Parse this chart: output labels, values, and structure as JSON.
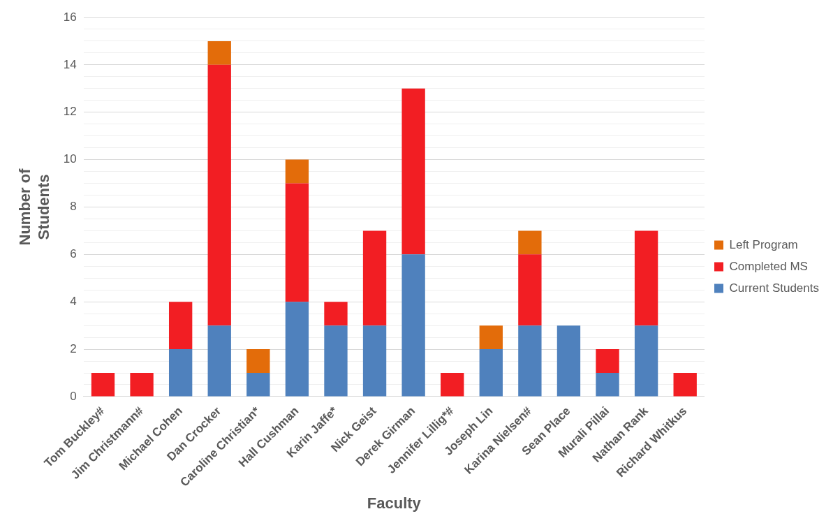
{
  "chart_data": {
    "type": "bar",
    "stacked": true,
    "xlabel": "Faculty",
    "ylabel": "Number of Students",
    "categories": [
      "Tom Buckley#",
      "Jim Christmann#",
      "Michael Cohen",
      "Dan Crocker",
      "Caroline Christian*",
      "Hall Cushman",
      "Karin Jaffe*",
      "Nick Geist",
      "Derek Girman",
      "Jennifer Lillig*#",
      "Joseph Lin",
      "Karina Nielsen#",
      "Sean Place",
      "Murali Pillai",
      "Nathan Rank",
      "Richard Whitkus"
    ],
    "series": [
      {
        "name": "Current Students",
        "color": "#4f81bd",
        "values": [
          0,
          0,
          2,
          3,
          1,
          4,
          3,
          3,
          6,
          0,
          2,
          3,
          3,
          1,
          3,
          0
        ]
      },
      {
        "name": "Completed MS",
        "color": "#f21e23",
        "values": [
          1,
          1,
          2,
          11,
          0,
          5,
          1,
          4,
          7,
          1,
          0,
          3,
          0,
          1,
          4,
          1
        ]
      },
      {
        "name": "Left Program",
        "color": "#e36c0a",
        "values": [
          0,
          0,
          0,
          1,
          1,
          1,
          0,
          0,
          0,
          0,
          1,
          1,
          0,
          0,
          0,
          0
        ]
      }
    ],
    "ylim": [
      0,
      16
    ],
    "yticks": [
      0,
      {
        "value": 0.5,
        "label": null
      },
      {
        "value": 1,
        "label": null
      },
      {
        "value": 1.5,
        "label": null
      },
      2,
      {
        "value": 2.5,
        "label": null
      },
      {
        "value": 3,
        "label": null
      },
      {
        "value": 3.5,
        "label": null
      },
      4,
      {
        "value": 4.5,
        "label": null
      },
      {
        "value": 5,
        "label": null
      },
      {
        "value": 5.5,
        "label": null
      },
      6,
      {
        "value": 6.5,
        "label": null
      },
      {
        "value": 7,
        "label": null
      },
      {
        "value": 7.5,
        "label": null
      },
      8,
      {
        "value": 8.5,
        "label": null
      },
      {
        "value": 9,
        "label": null
      },
      {
        "value": 9.5,
        "label": null
      },
      10,
      {
        "value": 10.5,
        "label": null
      },
      {
        "value": 11,
        "label": null
      },
      {
        "value": 11.5,
        "label": null
      },
      12,
      {
        "value": 12.5,
        "label": null
      },
      {
        "value": 13,
        "label": null
      },
      {
        "value": 13.5,
        "label": null
      },
      14,
      {
        "value": 14.5,
        "label": null
      },
      {
        "value": 15,
        "label": null
      },
      {
        "value": 15.5,
        "label": null
      },
      16
    ],
    "grid": "y",
    "legend": "right"
  }
}
